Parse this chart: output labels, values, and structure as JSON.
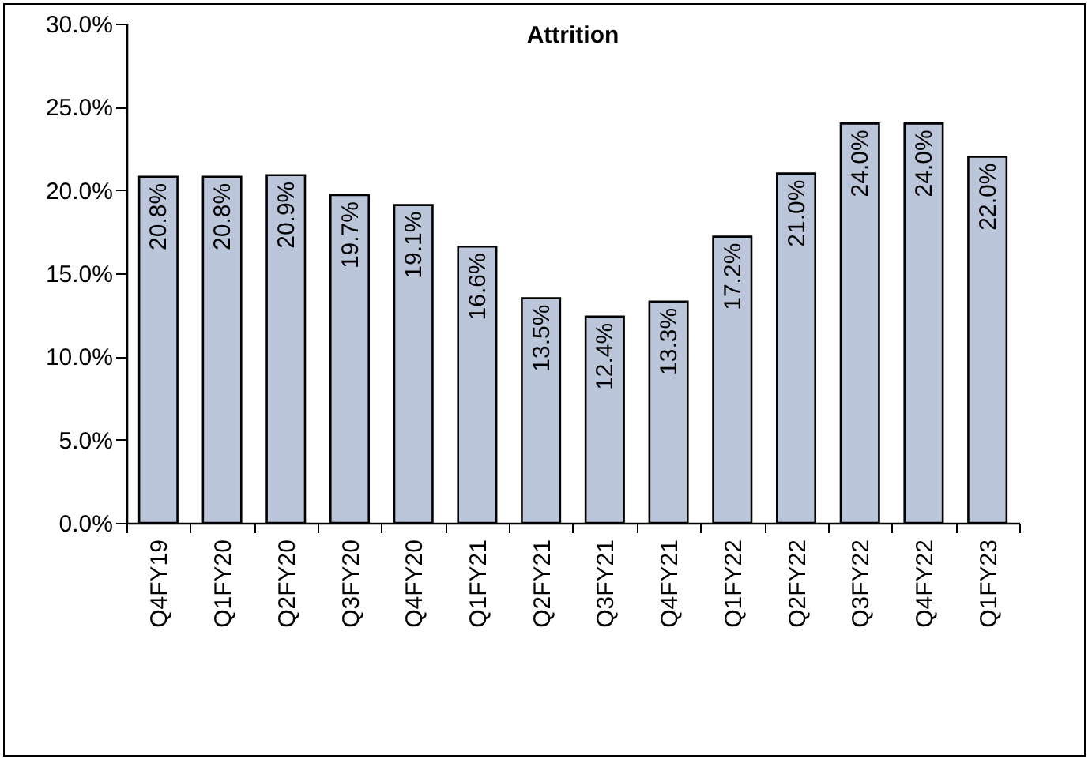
{
  "chart_data": {
    "type": "bar",
    "title": "Attrition",
    "categories": [
      "Q4FY19",
      "Q1FY20",
      "Q2FY20",
      "Q3FY20",
      "Q4FY20",
      "Q1FY21",
      "Q2FY21",
      "Q3FY21",
      "Q4FY21",
      "Q1FY22",
      "Q2FY22",
      "Q3FY22",
      "Q4FY22",
      "Q1FY23"
    ],
    "values": [
      20.8,
      20.8,
      20.9,
      19.7,
      19.1,
      16.6,
      13.5,
      12.4,
      13.3,
      17.2,
      21.0,
      24.0,
      24.0,
      22.0
    ],
    "value_labels": [
      "20.8%",
      "20.8%",
      "20.9%",
      "19.7%",
      "19.1%",
      "16.6%",
      "13.5%",
      "12.4%",
      "13.3%",
      "17.2%",
      "21.0%",
      "24.0%",
      "24.0%",
      "22.0%"
    ],
    "color": "#bcc6da",
    "ylim": [
      0,
      30
    ],
    "yticks": [
      {
        "value": 0,
        "label": "0.0%"
      },
      {
        "value": 5,
        "label": "5.0%"
      },
      {
        "value": 10,
        "label": "10.0%"
      },
      {
        "value": 15,
        "label": "15.0%"
      },
      {
        "value": 20,
        "label": "20.0%"
      },
      {
        "value": 25,
        "label": "25.0%"
      },
      {
        "value": 30,
        "label": "30.0%"
      }
    ],
    "grid": false
  }
}
